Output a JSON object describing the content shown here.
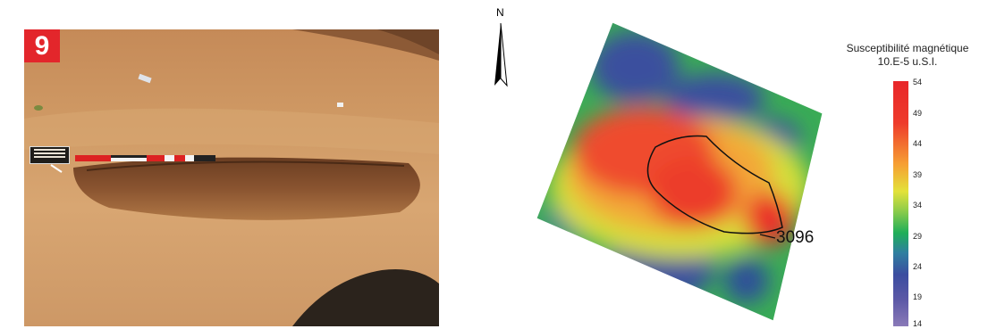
{
  "figure_badge": "9",
  "north_label": "N",
  "feature_label": "3096",
  "legend": {
    "title_line1": "Susceptibilité magnétique",
    "title_line2": "10.E-5 u.S.I.",
    "ticks": [
      "54",
      "49",
      "44",
      "39",
      "34",
      "29",
      "24",
      "19",
      "14"
    ]
  },
  "colors": {
    "badge": "#e3262b",
    "high": "#e8262a",
    "mid": "#e3e23a",
    "low": "#3b4da0"
  }
}
